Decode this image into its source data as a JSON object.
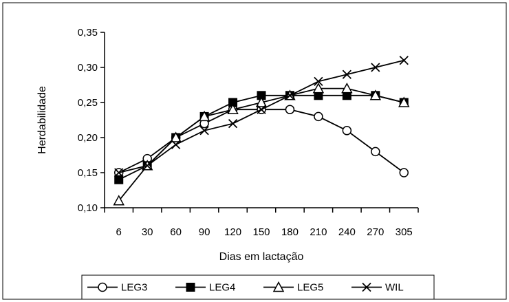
{
  "chart_data": {
    "type": "line",
    "xlabel": "Dias em lactação",
    "ylabel": "Herdabilidade",
    "categories": [
      "6",
      "30",
      "60",
      "90",
      "120",
      "150",
      "180",
      "210",
      "240",
      "270",
      "305"
    ],
    "ylim": [
      0.1,
      0.35
    ],
    "yticks": [
      "0,10",
      "0,15",
      "0,20",
      "0,25",
      "0,30",
      "0,35"
    ],
    "ytick_values": [
      0.1,
      0.15,
      0.2,
      0.25,
      0.3,
      0.35
    ],
    "grid": false,
    "legend_position": "bottom",
    "series": [
      {
        "name": "LEG3",
        "marker": "circle-open",
        "values": [
          0.15,
          0.17,
          0.2,
          0.22,
          0.24,
          0.24,
          0.24,
          0.23,
          0.21,
          0.18,
          0.15
        ]
      },
      {
        "name": "LEG4",
        "marker": "square-filled",
        "values": [
          0.14,
          0.16,
          0.2,
          0.23,
          0.25,
          0.26,
          0.26,
          0.26,
          0.26,
          0.26,
          0.25
        ]
      },
      {
        "name": "LEG5",
        "marker": "triangle-open",
        "values": [
          0.11,
          0.16,
          0.2,
          0.23,
          0.24,
          0.25,
          0.26,
          0.27,
          0.27,
          0.26,
          0.25
        ]
      },
      {
        "name": "WIL",
        "marker": "x",
        "values": [
          0.15,
          0.16,
          0.19,
          0.21,
          0.22,
          0.24,
          0.26,
          0.28,
          0.29,
          0.3,
          0.31
        ]
      }
    ],
    "colors": {
      "line": "#000000",
      "background": "#ffffff"
    }
  }
}
